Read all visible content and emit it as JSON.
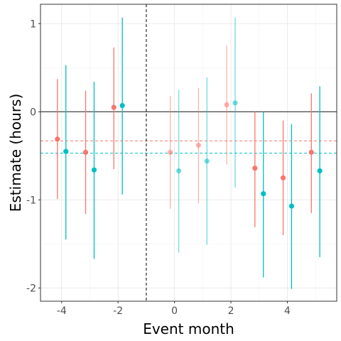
{
  "chart_data": {
    "type": "scatter",
    "xlabel": "Event month",
    "ylabel": "Estimate (hours)",
    "xlim": [
      -4.75,
      5.75
    ],
    "ylim": [
      -2.15,
      1.22
    ],
    "x_ticks": [
      -4,
      -2,
      0,
      2,
      4
    ],
    "x_tick_labels": [
      "-4",
      "-2",
      "0",
      "2",
      "4"
    ],
    "y_ticks": [
      -2,
      -1,
      0,
      1
    ],
    "y_tick_labels": [
      "-2",
      "-1",
      "0",
      "1"
    ],
    "grid": true,
    "legend": "none",
    "event_line_x": -1,
    "zero_line_y": 0,
    "series": [
      {
        "color": "#F8766D",
        "mean_line": -0.33,
        "points": [
          {
            "x": -4.15,
            "y": -0.31,
            "lo": -0.99,
            "hi": 0.37,
            "alpha": 1.0
          },
          {
            "x": -3.15,
            "y": -0.46,
            "lo": -1.16,
            "hi": 0.24,
            "alpha": 1.0
          },
          {
            "x": -2.15,
            "y": 0.05,
            "lo": -0.65,
            "hi": 0.73,
            "alpha": 1.0
          },
          {
            "x": -0.15,
            "y": -0.46,
            "lo": -1.1,
            "hi": 0.18,
            "alpha": 0.55
          },
          {
            "x": 0.85,
            "y": -0.38,
            "lo": -1.04,
            "hi": 0.27,
            "alpha": 0.55
          },
          {
            "x": 1.85,
            "y": 0.08,
            "lo": -0.6,
            "hi": 0.75,
            "alpha": 0.55
          },
          {
            "x": 2.85,
            "y": -0.64,
            "lo": -1.31,
            "hi": 0.0,
            "alpha": 1.0
          },
          {
            "x": 3.85,
            "y": -0.75,
            "lo": -1.4,
            "hi": -0.1,
            "alpha": 1.0
          },
          {
            "x": 4.85,
            "y": -0.46,
            "lo": -1.15,
            "hi": 0.21,
            "alpha": 1.0
          }
        ]
      },
      {
        "color": "#00BFC4",
        "mean_line": -0.47,
        "points": [
          {
            "x": -3.85,
            "y": -0.45,
            "lo": -1.45,
            "hi": 0.53,
            "alpha": 1.0
          },
          {
            "x": -2.85,
            "y": -0.66,
            "lo": -1.67,
            "hi": 0.34,
            "alpha": 1.0
          },
          {
            "x": -1.85,
            "y": 0.07,
            "lo": -0.94,
            "hi": 1.07,
            "alpha": 1.0
          },
          {
            "x": 0.15,
            "y": -0.67,
            "lo": -1.6,
            "hi": 0.25,
            "alpha": 0.55
          },
          {
            "x": 1.15,
            "y": -0.56,
            "lo": -1.51,
            "hi": 0.39,
            "alpha": 0.55
          },
          {
            "x": 2.15,
            "y": 0.1,
            "lo": -0.86,
            "hi": 1.07,
            "alpha": 0.55
          },
          {
            "x": 3.15,
            "y": -0.93,
            "lo": -1.88,
            "hi": 0.0,
            "alpha": 1.0
          },
          {
            "x": 4.15,
            "y": -1.07,
            "lo": -2.01,
            "hi": -0.14,
            "alpha": 1.0
          },
          {
            "x": 5.15,
            "y": -0.67,
            "lo": -1.65,
            "hi": 0.29,
            "alpha": 1.0
          }
        ]
      }
    ]
  }
}
